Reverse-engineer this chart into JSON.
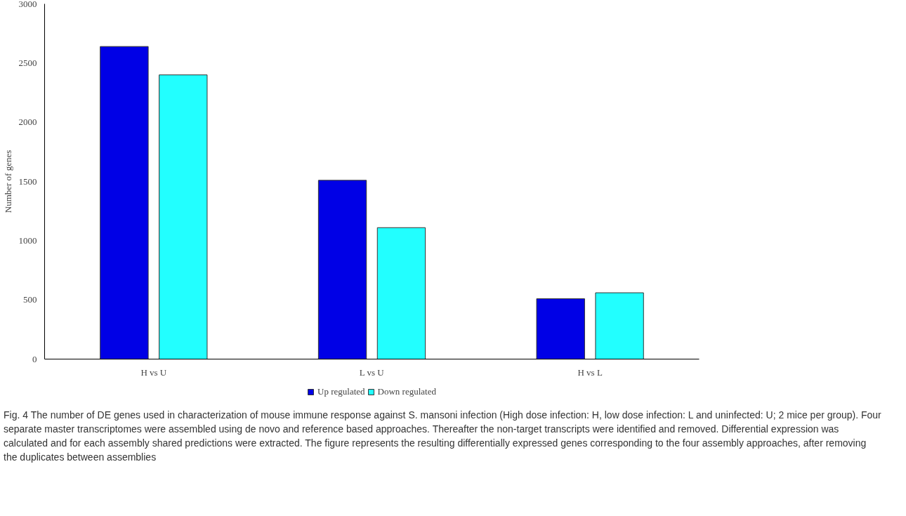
{
  "chart_data": {
    "type": "bar",
    "ylabel": "Number of genes",
    "categories": [
      "H vs U",
      "L vs U",
      "H vs L"
    ],
    "series": [
      {
        "name": "Up regulated",
        "color": "#0000e6",
        "values": [
          2640,
          1510,
          510
        ]
      },
      {
        "name": "Down regulated",
        "color": "#22ffff",
        "values": [
          2400,
          1110,
          560
        ]
      }
    ],
    "ylim": [
      0,
      3000
    ],
    "yticks": [
      0,
      500,
      1000,
      1500,
      2000,
      2500,
      3000
    ],
    "grid": false,
    "legend": "bottom",
    "annotations": [
      "Fig. 4 The number of DE genes used in characterization of mouse immune response against S. mansoni infection (High dose infection: H, low dose infection: L and uninfected: U; 2 mice per group). Four separate master transcriptomes were assembled using de novo and reference based approaches. Thereafter the non-target transcripts were identified and removed. Differential expression was calculated and for each assembly shared predictions were extracted. The figure represents the resulting differentially expressed genes corresponding to the four assembly approaches, after removing the duplicates between assemblies"
    ]
  }
}
